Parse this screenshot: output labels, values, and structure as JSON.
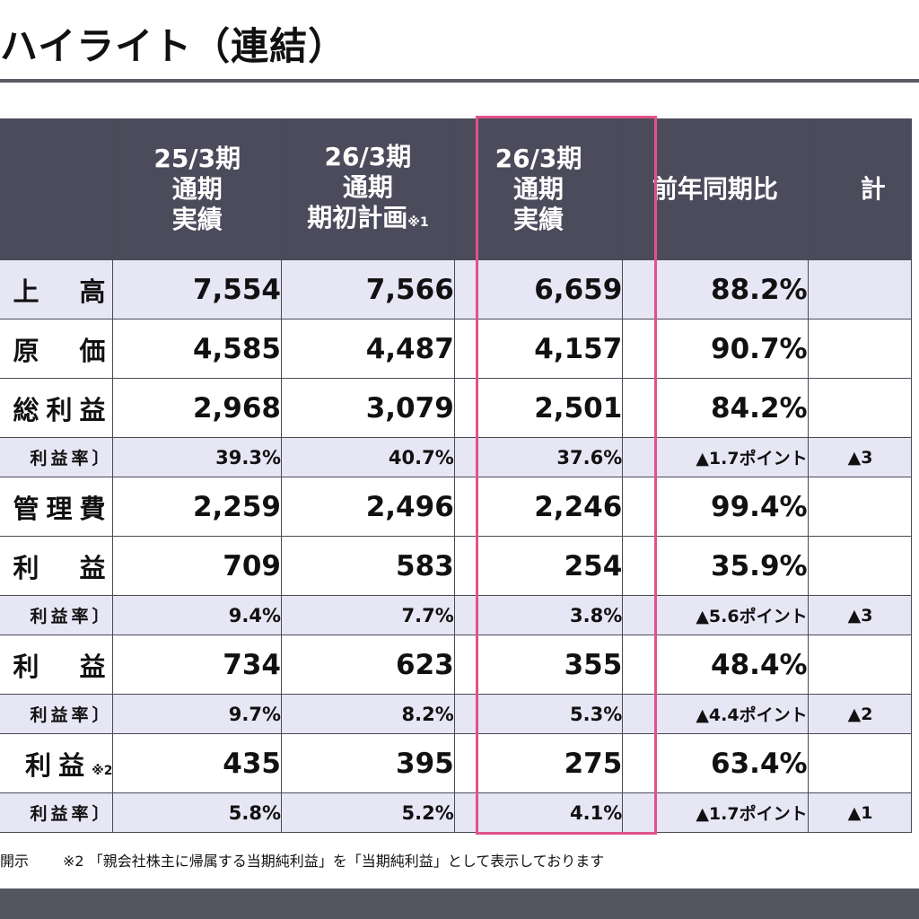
{
  "title": "ハイライト（連結）",
  "columns": [
    {
      "lines": [
        ""
      ]
    },
    {
      "lines": [
        "25/3期",
        "通期",
        "実績"
      ]
    },
    {
      "lines": [
        "26/3期",
        "通期",
        "期初計画"
      ],
      "note": "※1"
    },
    {
      "lines": [
        "26/3期",
        "通期",
        "実績"
      ]
    },
    {
      "lines": [
        "前年同期比"
      ]
    },
    {
      "lines": [
        "計"
      ]
    }
  ],
  "rows": [
    {
      "type": "big",
      "label": "上　高",
      "values": [
        "7,554",
        "7,566",
        "6,659",
        "88.2%",
        ""
      ]
    },
    {
      "type": "big",
      "label": "原　価",
      "values": [
        "4,585",
        "4,487",
        "4,157",
        "90.7%",
        ""
      ]
    },
    {
      "type": "big",
      "label": "総利益",
      "values": [
        "2,968",
        "3,079",
        "2,501",
        "84.2%",
        ""
      ]
    },
    {
      "type": "small",
      "label": "利益率〕",
      "values": [
        "39.3%",
        "40.7%",
        "37.6%",
        "▲1.7ポイント",
        "▲3"
      ]
    },
    {
      "type": "big",
      "label": "管理費",
      "values": [
        "2,259",
        "2,496",
        "2,246",
        "99.4%",
        ""
      ]
    },
    {
      "type": "big",
      "label": "利　益",
      "values": [
        "709",
        "583",
        "254",
        "35.9%",
        ""
      ]
    },
    {
      "type": "small",
      "label": "利益率〕",
      "values": [
        "9.4%",
        "7.7%",
        "3.8%",
        "▲5.6ポイント",
        "▲3"
      ]
    },
    {
      "type": "big",
      "label": "利　益",
      "values": [
        "734",
        "623",
        "355",
        "48.4%",
        ""
      ]
    },
    {
      "type": "small",
      "label": "利益率〕",
      "values": [
        "9.7%",
        "8.2%",
        "5.3%",
        "▲4.4ポイント",
        "▲2"
      ]
    },
    {
      "type": "big",
      "label": "利益",
      "label_note": "※2",
      "values": [
        "435",
        "395",
        "275",
        "63.4%",
        ""
      ]
    },
    {
      "type": "small",
      "label": "利益率〕",
      "values": [
        "5.8%",
        "5.2%",
        "4.1%",
        "▲1.7ポイント",
        "▲1"
      ]
    }
  ],
  "footnotes": [
    "開示",
    "※2 「親会社株主に帰属する当期純利益」を「当期純利益」として表示しております"
  ],
  "colors": {
    "header_bg": "#4b4b5c",
    "row_shade": "#e6e6f5",
    "highlight_border": "#e0528a",
    "bar": "#55555f"
  }
}
